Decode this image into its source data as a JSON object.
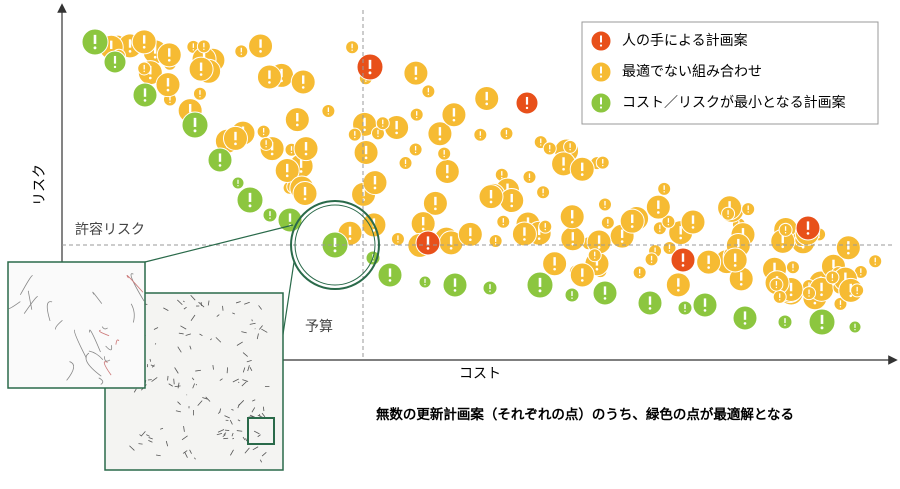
{
  "axes": {
    "y_label": "リスク",
    "x_label": "コスト",
    "risk_threshold": "許容リスク",
    "budget": "予算"
  },
  "legend": {
    "items": [
      {
        "label": "人の手による計画案",
        "color": "#e8501a"
      },
      {
        "label": "最適でない組み合わせ",
        "color": "#f6bb33"
      },
      {
        "label": "コスト／リスクが最小となる計画案",
        "color": "#8cc63f"
      }
    ]
  },
  "caption": "無数の更新計画案（それぞれの点）のうち、緑色の点が最適解となる"
}
